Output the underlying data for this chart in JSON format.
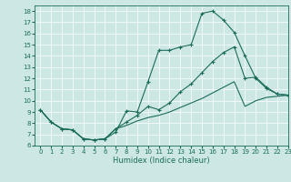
{
  "xlabel": "Humidex (Indice chaleur)",
  "background_color": "#cde8e4",
  "line_color": "#1a6b5a",
  "grid_color": "#ffffff",
  "xlim": [
    -0.5,
    23
  ],
  "ylim": [
    6,
    18.5
  ],
  "xticks": [
    0,
    1,
    2,
    3,
    4,
    5,
    6,
    7,
    8,
    9,
    10,
    11,
    12,
    13,
    14,
    15,
    16,
    17,
    18,
    19,
    20,
    21,
    22,
    23
  ],
  "yticks": [
    6,
    7,
    8,
    9,
    10,
    11,
    12,
    13,
    14,
    15,
    16,
    17,
    18
  ],
  "line1_x": [
    0,
    1,
    2,
    3,
    4,
    5,
    6,
    7,
    8,
    9,
    10,
    11,
    12,
    13,
    14,
    15,
    16,
    17,
    18,
    19,
    20,
    21,
    22,
    23
  ],
  "line1_y": [
    9.2,
    8.1,
    7.5,
    7.4,
    6.6,
    6.5,
    6.6,
    7.2,
    9.1,
    9.0,
    11.7,
    14.5,
    14.5,
    14.8,
    15.0,
    17.8,
    18.0,
    17.2,
    16.1,
    14.0,
    12.0,
    11.1,
    10.6,
    10.5
  ],
  "line1_markers": [
    0,
    1,
    2,
    3,
    4,
    5,
    6,
    7,
    8,
    9,
    10,
    11,
    12,
    13,
    14,
    15,
    16,
    17,
    18,
    19,
    20,
    21,
    22,
    23
  ],
  "line2_x": [
    0,
    1,
    2,
    3,
    4,
    5,
    6,
    7,
    8,
    9,
    10,
    11,
    12,
    13,
    14,
    15,
    16,
    17,
    18,
    19,
    20,
    21,
    22,
    23
  ],
  "line2_y": [
    9.2,
    8.1,
    7.5,
    7.4,
    6.6,
    6.5,
    6.6,
    7.5,
    8.1,
    8.7,
    9.5,
    9.2,
    9.8,
    10.8,
    11.5,
    12.5,
    13.5,
    14.3,
    14.8,
    12.0,
    12.1,
    11.2,
    10.6,
    10.5
  ],
  "line2_markers": [
    0,
    1,
    2,
    3,
    4,
    5,
    6,
    7,
    8,
    9,
    10,
    14,
    15,
    16,
    17,
    18,
    19,
    20,
    21,
    22,
    23
  ],
  "line3_x": [
    0,
    1,
    2,
    3,
    4,
    5,
    6,
    7,
    8,
    9,
    10,
    11,
    12,
    13,
    14,
    15,
    16,
    17,
    18,
    19,
    20,
    21,
    22,
    23
  ],
  "line3_y": [
    9.2,
    8.1,
    7.5,
    7.4,
    6.6,
    6.5,
    6.6,
    7.5,
    7.8,
    8.2,
    8.5,
    8.7,
    9.0,
    9.4,
    9.8,
    10.2,
    10.7,
    11.2,
    11.7,
    9.5,
    10.0,
    10.3,
    10.4,
    10.5
  ],
  "line3_markers": []
}
